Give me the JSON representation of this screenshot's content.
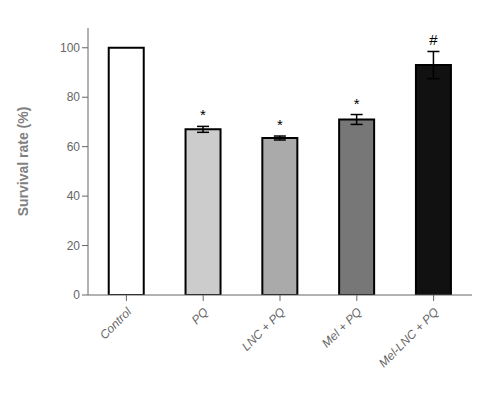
{
  "chart_data": {
    "type": "bar",
    "categories": [
      "Control",
      "PQ",
      "LNC + PQ",
      "Mel + PQ",
      "Mel-LNC + PQ"
    ],
    "values": [
      100,
      67,
      63.5,
      71,
      93
    ],
    "errors": [
      0,
      1.2,
      0.8,
      2.0,
      5.5
    ],
    "colors": [
      "#ffffff",
      "#cccccc",
      "#aaaaaa",
      "#777777",
      "#111111"
    ],
    "annotations": [
      null,
      "*",
      "*",
      "*",
      "#"
    ],
    "ylabel": "Survival rate (%)",
    "ylim": [
      0,
      108
    ],
    "yticks": [
      0,
      20,
      40,
      60,
      80,
      100
    ],
    "grid": false
  }
}
